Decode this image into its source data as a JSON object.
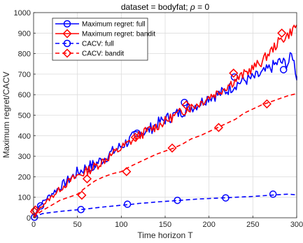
{
  "chart_data": {
    "type": "line",
    "title_prefix": "dataset = bodyfat; ",
    "title_rho": "ρ",
    "title_suffix": " = 0",
    "xlabel": "Time horizon T",
    "ylabel": "Maximum regret/CACV",
    "xlim": [
      0,
      300
    ],
    "ylim": [
      0,
      1000
    ],
    "xticks": [
      0,
      50,
      100,
      150,
      200,
      250,
      300
    ],
    "yticks": [
      0,
      100,
      200,
      300,
      400,
      500,
      600,
      700,
      800,
      900,
      1000
    ],
    "grid": true,
    "legend_position": "top-left",
    "series": [
      {
        "name": "Maximum regret: full",
        "color": "#0000ff",
        "line": "solid",
        "marker": "circle",
        "noise": 30,
        "seed": 7,
        "x": [
          0,
          5,
          10,
          20,
          30,
          40,
          50,
          60,
          70,
          80,
          90,
          100,
          110,
          120,
          130,
          140,
          150,
          160,
          170,
          180,
          190,
          200,
          210,
          220,
          230,
          240,
          250,
          260,
          270,
          280,
          290,
          295,
          300
        ],
        "y": [
          0,
          50,
          75,
          115,
          150,
          185,
          220,
          245,
          260,
          290,
          320,
          350,
          380,
          415,
          425,
          455,
          480,
          500,
          520,
          540,
          560,
          590,
          600,
          620,
          650,
          670,
          680,
          700,
          730,
          760,
          750,
          800,
          690
        ],
        "markers_x": [
          8,
          66,
          118,
          172,
          229,
          285
        ],
        "markers_y": [
          58,
          245,
          412,
          562,
          686,
          722
        ]
      },
      {
        "name": "Maximum regret: bandit",
        "color": "#ff0000",
        "line": "solid",
        "marker": "diamond",
        "noise": 24,
        "seed": 13,
        "x": [
          0,
          5,
          10,
          20,
          30,
          40,
          50,
          60,
          70,
          80,
          90,
          100,
          110,
          120,
          130,
          140,
          150,
          160,
          170,
          180,
          190,
          200,
          210,
          220,
          230,
          240,
          250,
          260,
          270,
          280,
          290,
          300
        ],
        "y": [
          0,
          35,
          60,
          100,
          140,
          175,
          205,
          225,
          250,
          280,
          310,
          340,
          370,
          400,
          425,
          445,
          470,
          495,
          520,
          540,
          560,
          590,
          610,
          640,
          670,
          700,
          730,
          760,
          810,
          860,
          890,
          940
        ],
        "markers_x": [
          2,
          61,
          116,
          174,
          228,
          283
        ],
        "markers_y": [
          38,
          190,
          392,
          549,
          705,
          900
        ]
      },
      {
        "name": "CACV: full",
        "color": "#0000ff",
        "line": "dashed",
        "marker": "circle",
        "x": [
          0,
          5,
          10,
          20,
          30,
          40,
          50,
          60,
          70,
          80,
          90,
          100,
          110,
          120,
          130,
          140,
          150,
          160,
          170,
          180,
          190,
          200,
          210,
          220,
          230,
          240,
          250,
          260,
          270,
          280,
          290,
          300
        ],
        "y": [
          0,
          12,
          20,
          26,
          31,
          35,
          39,
          43,
          48,
          53,
          57,
          61,
          65,
          70,
          73,
          77,
          80,
          83,
          86,
          89,
          92,
          94,
          96,
          98,
          100,
          102,
          104,
          107,
          110,
          113,
          115,
          112
        ],
        "markers_x": [
          1,
          54,
          107,
          164,
          219,
          273
        ],
        "markers_y": [
          3,
          40,
          66,
          85,
          97,
          115
        ]
      },
      {
        "name": "CACV: bandit",
        "color": "#ff0000",
        "line": "dashed",
        "marker": "diamond",
        "x": [
          0,
          5,
          10,
          20,
          30,
          40,
          50,
          60,
          70,
          80,
          90,
          100,
          110,
          120,
          130,
          140,
          150,
          160,
          170,
          180,
          190,
          200,
          210,
          220,
          230,
          240,
          250,
          260,
          270,
          280,
          290,
          300
        ],
        "y": [
          0,
          20,
          35,
          60,
          85,
          100,
          115,
          150,
          180,
          200,
          215,
          225,
          250,
          270,
          290,
          310,
          325,
          340,
          360,
          385,
          400,
          420,
          440,
          460,
          480,
          510,
          530,
          550,
          565,
          580,
          595,
          605
        ],
        "markers_x": [
          1,
          55,
          106,
          158,
          211,
          266
        ],
        "markers_y": [
          30,
          110,
          225,
          340,
          440,
          555
        ]
      }
    ]
  }
}
